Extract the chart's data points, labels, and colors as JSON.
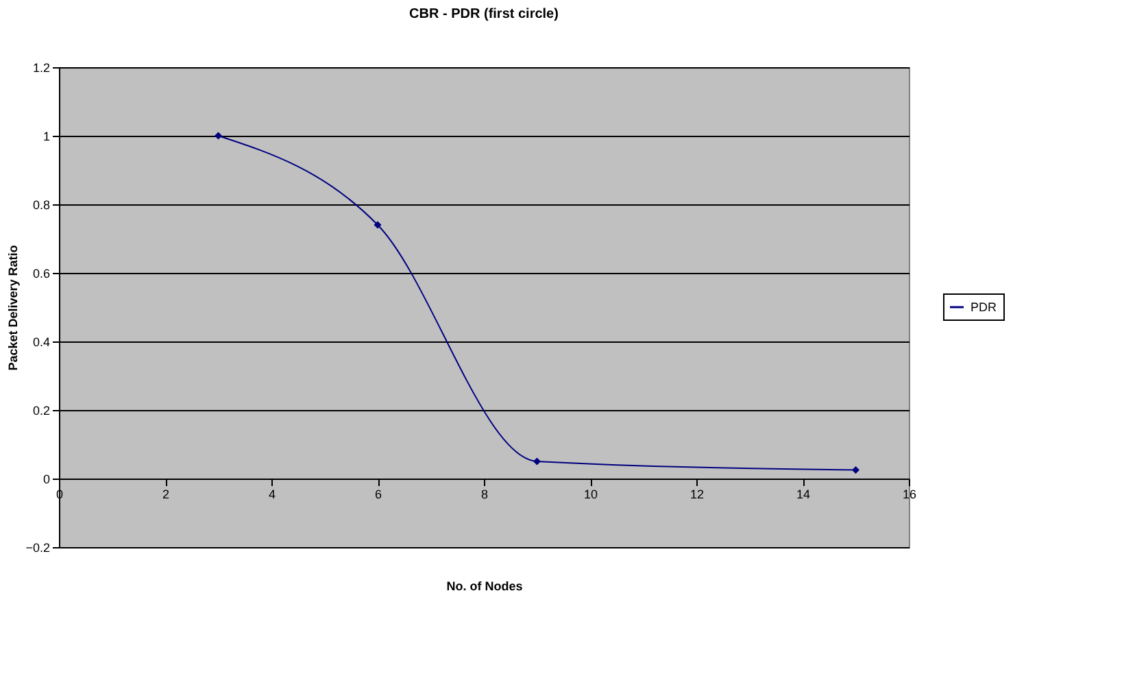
{
  "chart_data": {
    "type": "line",
    "title": "CBR - PDR (first circle)",
    "xlabel": "No. of Nodes",
    "ylabel": "Packet Delivery Ratio",
    "x": [
      3,
      6,
      9,
      15
    ],
    "series": [
      {
        "name": "PDR",
        "color": "#000080",
        "values": [
          1,
          0.74,
          0.05,
          0.025
        ]
      }
    ],
    "xlim": [
      0,
      16
    ],
    "xticks": [
      0,
      2,
      4,
      6,
      8,
      10,
      12,
      14,
      16
    ],
    "ylim": [
      -0.2,
      1.2
    ],
    "yticks": [
      -0.2,
      0,
      0.2,
      0.4,
      0.6,
      0.8,
      1,
      1.2
    ],
    "grid": "y",
    "legend": "right",
    "marker": "diamond",
    "line_style": "solid"
  }
}
